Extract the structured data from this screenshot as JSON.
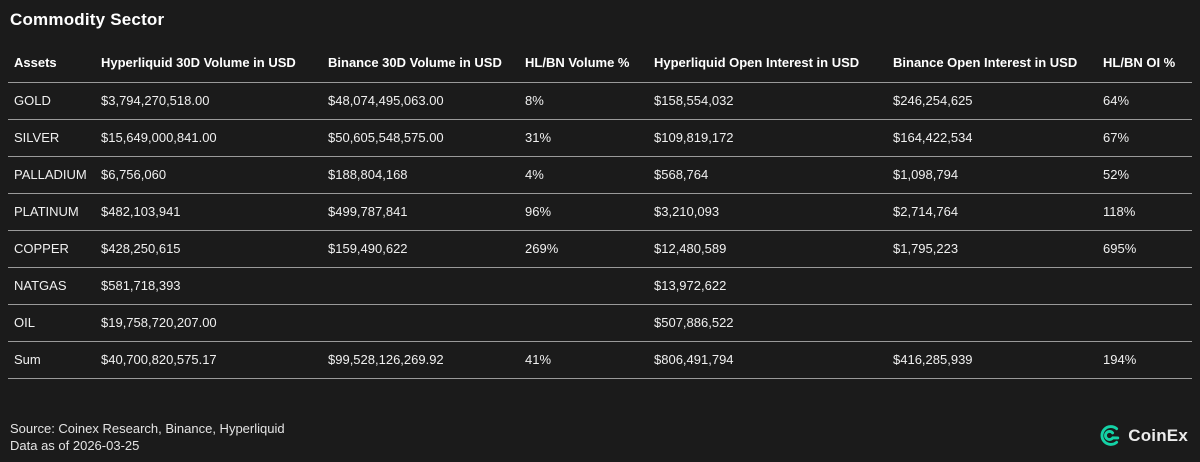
{
  "title": "Commodity Sector",
  "table": {
    "columns": [
      "Assets",
      "Hyperliquid 30D Volume in USD",
      "Binance 30D Volume in USD",
      "HL/BN Volume %",
      "Hyperliquid Open Interest in USD",
      "Binance Open Interest in USD",
      "HL/BN OI %"
    ],
    "rows": [
      [
        "GOLD",
        "$3,794,270,518.00",
        "$48,074,495,063.00",
        "8%",
        "$158,554,032",
        "$246,254,625",
        "64%"
      ],
      [
        "SILVER",
        "$15,649,000,841.00",
        "$50,605,548,575.00",
        "31%",
        "$109,819,172",
        "$164,422,534",
        "67%"
      ],
      [
        "PALLADIUM",
        "$6,756,060",
        "$188,804,168",
        "4%",
        "$568,764",
        "$1,098,794",
        "52%"
      ],
      [
        "PLATINUM",
        "$482,103,941",
        "$499,787,841",
        "96%",
        "$3,210,093",
        "$2,714,764",
        "118%"
      ],
      [
        "COPPER",
        "$428,250,615",
        "$159,490,622",
        "269%",
        "$12,480,589",
        "$1,795,223",
        "695%"
      ],
      [
        "NATGAS",
        "$581,718,393",
        "",
        "",
        "$13,972,622",
        "",
        ""
      ],
      [
        "OIL",
        "$19,758,720,207.00",
        "",
        "",
        "$507,886,522",
        "",
        ""
      ],
      [
        "Sum",
        "$40,700,820,575.17",
        "$99,528,126,269.92",
        "41%",
        "$806,491,794",
        "$416,285,939",
        "194%"
      ]
    ]
  },
  "chart_data": {
    "type": "table",
    "title": "Commodity Sector",
    "columns": [
      "Assets",
      "Hyperliquid 30D Volume in USD",
      "Binance 30D Volume in USD",
      "HL/BN Volume %",
      "Hyperliquid Open Interest in USD",
      "Binance Open Interest in USD",
      "HL/BN OI %"
    ],
    "rows": [
      {
        "asset": "GOLD",
        "hl_30d_volume_usd": 3794270518.0,
        "bn_30d_volume_usd": 48074495063.0,
        "hl_bn_volume_pct": "8%",
        "hl_open_interest_usd": 158554032,
        "bn_open_interest_usd": 246254625,
        "hl_bn_oi_pct": "64%"
      },
      {
        "asset": "SILVER",
        "hl_30d_volume_usd": 15649000841.0,
        "bn_30d_volume_usd": 50605548575.0,
        "hl_bn_volume_pct": "31%",
        "hl_open_interest_usd": 109819172,
        "bn_open_interest_usd": 164422534,
        "hl_bn_oi_pct": "67%"
      },
      {
        "asset": "PALLADIUM",
        "hl_30d_volume_usd": 6756060,
        "bn_30d_volume_usd": 188804168,
        "hl_bn_volume_pct": "4%",
        "hl_open_interest_usd": 568764,
        "bn_open_interest_usd": 1098794,
        "hl_bn_oi_pct": "52%"
      },
      {
        "asset": "PLATINUM",
        "hl_30d_volume_usd": 482103941,
        "bn_30d_volume_usd": 499787841,
        "hl_bn_volume_pct": "96%",
        "hl_open_interest_usd": 3210093,
        "bn_open_interest_usd": 2714764,
        "hl_bn_oi_pct": "118%"
      },
      {
        "asset": "COPPER",
        "hl_30d_volume_usd": 428250615,
        "bn_30d_volume_usd": 159490622,
        "hl_bn_volume_pct": "269%",
        "hl_open_interest_usd": 12480589,
        "bn_open_interest_usd": 1795223,
        "hl_bn_oi_pct": "695%"
      },
      {
        "asset": "NATGAS",
        "hl_30d_volume_usd": 581718393,
        "bn_30d_volume_usd": null,
        "hl_bn_volume_pct": null,
        "hl_open_interest_usd": 13972622,
        "bn_open_interest_usd": null,
        "hl_bn_oi_pct": null
      },
      {
        "asset": "OIL",
        "hl_30d_volume_usd": 19758720207.0,
        "bn_30d_volume_usd": null,
        "hl_bn_volume_pct": null,
        "hl_open_interest_usd": 507886522,
        "bn_open_interest_usd": null,
        "hl_bn_oi_pct": null
      },
      {
        "asset": "Sum",
        "hl_30d_volume_usd": 40700820575.17,
        "bn_30d_volume_usd": 99528126269.92,
        "hl_bn_volume_pct": "41%",
        "hl_open_interest_usd": 806491794,
        "bn_open_interest_usd": 416285939,
        "hl_bn_oi_pct": "194%"
      }
    ]
  },
  "footer": {
    "source_line": "Source: Coinex Research, Binance, Hyperliquid",
    "date_line": "Data as of 2026-03-25",
    "brand_name": "CoinEx",
    "brand_icon": "coinex-ring-icon"
  },
  "colors": {
    "background": "#1b1b1b",
    "row_border": "#9a9a9a",
    "heading_text": "#ffffff",
    "body_text": "#f0f0f0",
    "brand_accent": "#14d2a6"
  }
}
